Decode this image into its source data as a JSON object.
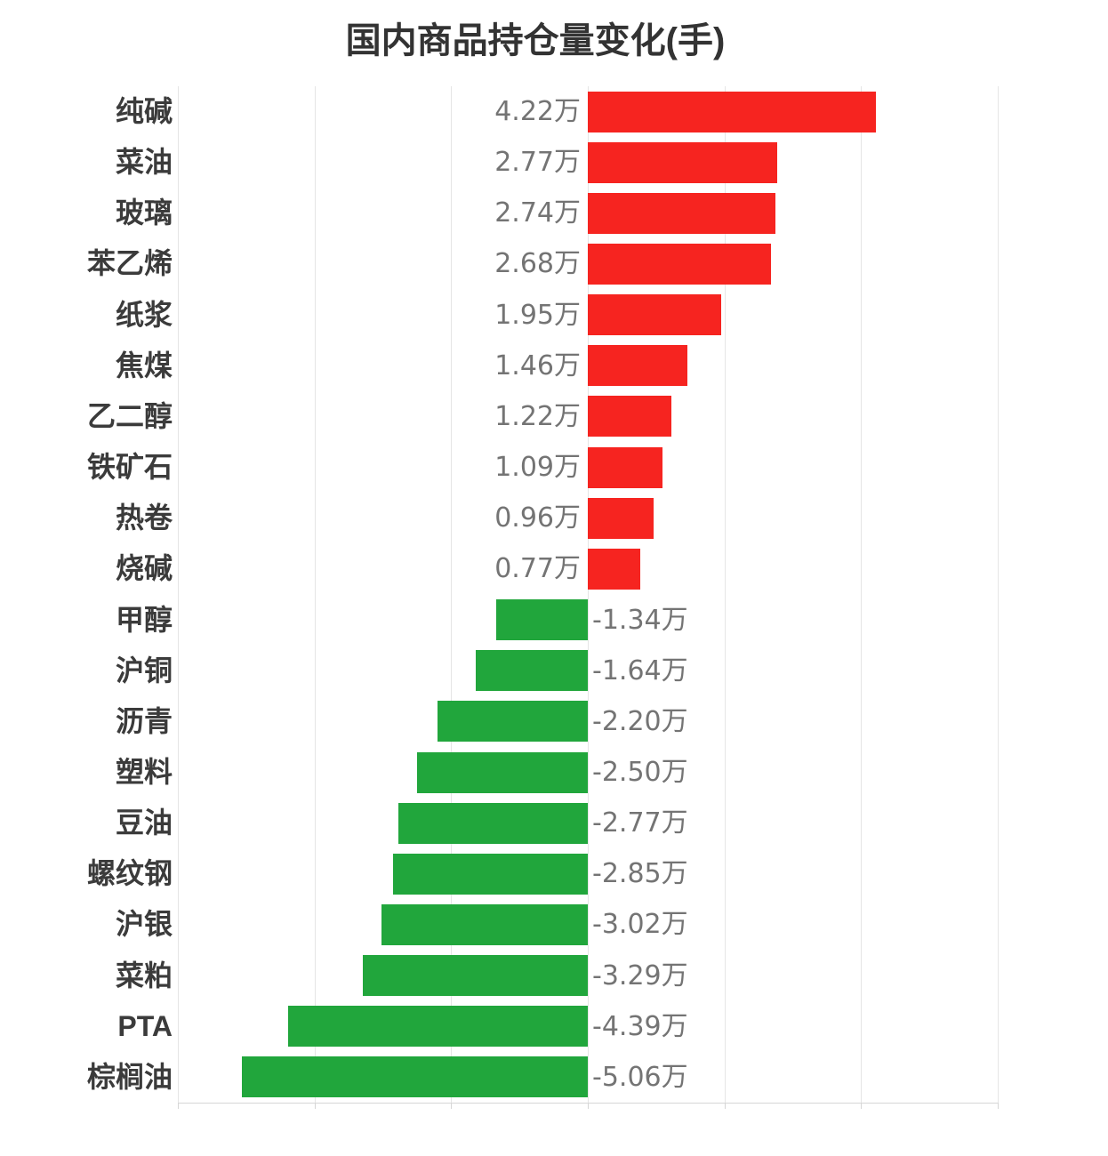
{
  "title": "国内商品持仓量变化(手)",
  "colors": {
    "positive_bar": "#f62420",
    "negative_bar": "#21a63c",
    "title_text": "#333333",
    "category_text": "#3b3b3b",
    "value_text": "#747474",
    "gridline": "#e5e5e5",
    "axis_line": "#d6d6d6",
    "background": "#ffffff"
  },
  "chart_data": {
    "type": "bar",
    "orientation": "horizontal",
    "title": "国内商品持仓量变化(手)",
    "xlabel": "",
    "ylabel": "",
    "categories": [
      "纯碱",
      "菜油",
      "玻璃",
      "苯乙烯",
      "纸浆",
      "焦煤",
      "乙二醇",
      "铁矿石",
      "热卷",
      "烧碱",
      "甲醇",
      "沪铜",
      "沥青",
      "塑料",
      "豆油",
      "螺纹钢",
      "沪银",
      "菜粕",
      "PTA",
      "棕榈油"
    ],
    "values": [
      4.22,
      2.77,
      2.74,
      2.68,
      1.95,
      1.46,
      1.22,
      1.09,
      0.96,
      0.77,
      -1.34,
      -1.64,
      -2.2,
      -2.5,
      -2.77,
      -2.85,
      -3.02,
      -3.29,
      -4.39,
      -5.06
    ],
    "value_labels": [
      "4.22万",
      "2.77万",
      "2.74万",
      "2.68万",
      "1.95万",
      "1.46万",
      "1.22万",
      "1.09万",
      "0.96万",
      "0.77万",
      "-1.34万",
      "-1.64万",
      "-2.20万",
      "-2.50万",
      "-2.77万",
      "-2.85万",
      "-3.02万",
      "-3.29万",
      "-4.39万",
      "-5.06万"
    ],
    "values_unit": "万",
    "xlim": [
      -6,
      6
    ],
    "gridline_step": 2,
    "grid": "vertical-gridlines-only",
    "axis_tick_labels_visible": false,
    "legend": "none"
  }
}
